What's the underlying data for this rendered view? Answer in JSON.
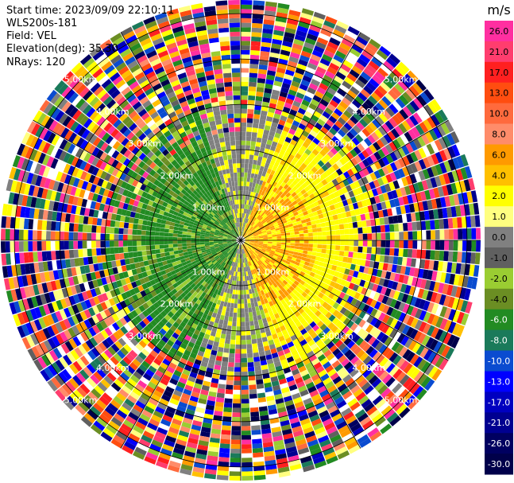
{
  "header": {
    "start_time": "Start time: 2023/09/09 22:10:11",
    "instrument": "WLS200s-181",
    "field": "Field: VEL",
    "elevation": "Elevation(deg): 35.30",
    "nrays": "NRays: 120"
  },
  "chart_data": {
    "type": "heatmap",
    "projection": "polar-ppi",
    "field": "VEL",
    "rays": 120,
    "range_rings_km": [
      1.0,
      2.0,
      3.0,
      4.0,
      5.0
    ],
    "range_ring_labels": [
      "1.00km",
      "2.00km",
      "3.00km",
      "4.00km",
      "5.00km"
    ],
    "azimuth_lines_deg": [
      0,
      30,
      60,
      90,
      120,
      150,
      180,
      210,
      240,
      270,
      300,
      330
    ],
    "colorbar": {
      "unit": "m/s",
      "ticks": [
        "26.0",
        "21.0",
        "17.0",
        "13.0",
        "10.0",
        "8.0",
        "6.0",
        "4.0",
        "2.0",
        "1.0",
        "0.0",
        "-1.0",
        "-2.0",
        "-4.0",
        "-6.0",
        "-8.0",
        "-10.0",
        "-13.0",
        "-17.0",
        "-21.0",
        "-26.0",
        "-30.0"
      ],
      "colors": [
        "#ff2fa0",
        "#ff3d6e",
        "#ff2020",
        "#ff4d10",
        "#ff6a3d",
        "#ff8c6a",
        "#ff9a00",
        "#ffc000",
        "#ffff00",
        "#ffff80",
        "#808080",
        "#606060",
        "#9acd32",
        "#6b8e23",
        "#228b22",
        "#1a7a5a",
        "#0a4bd0",
        "#0000ff",
        "#0000c0",
        "#000090",
        "#000060",
        "#00004a"
      ]
    }
  }
}
